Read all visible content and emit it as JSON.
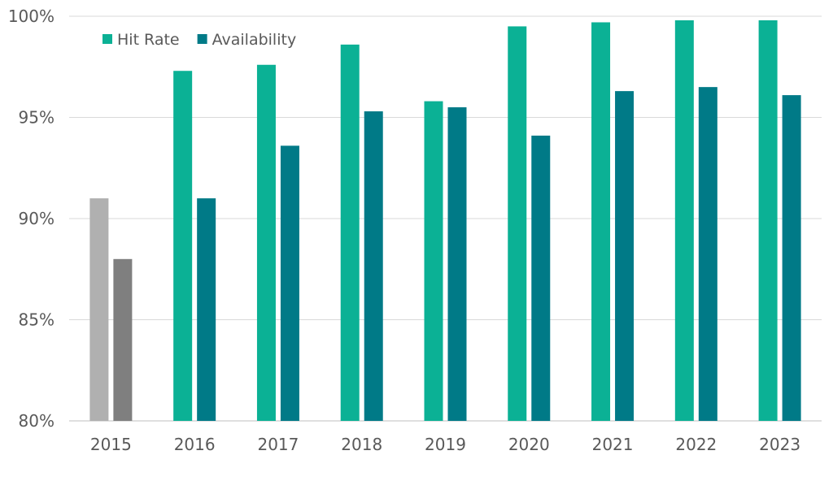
{
  "chart_data": {
    "type": "bar",
    "categories": [
      "2015",
      "2016",
      "2017",
      "2018",
      "2019",
      "2020",
      "2021",
      "2022",
      "2023"
    ],
    "series": [
      {
        "name": "Hit Rate",
        "color": "#0BB195",
        "values": [
          91.0,
          97.3,
          97.6,
          98.6,
          95.8,
          99.5,
          99.7,
          99.8,
          99.8
        ]
      },
      {
        "name": "Availability",
        "color": "#007A87",
        "values": [
          88.0,
          91.0,
          93.6,
          95.3,
          95.5,
          94.1,
          96.3,
          96.5,
          96.1
        ]
      }
    ],
    "highlight_overrides": {
      "category": "2015",
      "colors": [
        "#B0B0B0",
        "#7F7F7F"
      ]
    },
    "ylim": [
      80,
      100
    ],
    "yticks": [
      80,
      85,
      90,
      95,
      100
    ],
    "ytick_labels": [
      "80%",
      "85%",
      "90%",
      "95%",
      "100%"
    ],
    "title": "",
    "xlabel": "",
    "ylabel": "",
    "grid": true,
    "legend_position": "top-left"
  }
}
